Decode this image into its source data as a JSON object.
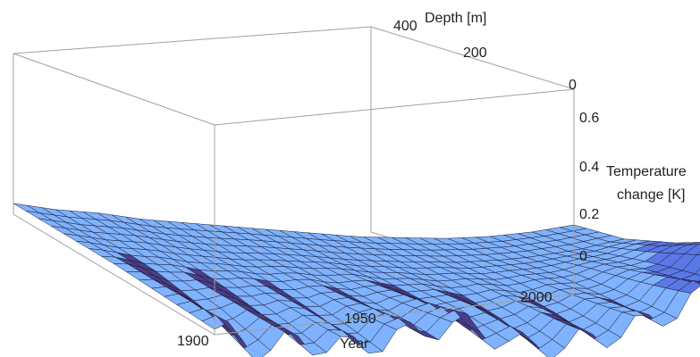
{
  "chart_data": {
    "type": "surface3d",
    "title": "",
    "axes": {
      "x": {
        "label": "Year",
        "range": [
          1880,
          2012
        ],
        "ticks": [
          1900,
          1950,
          2000
        ]
      },
      "y": {
        "label": "Depth [m]",
        "range": [
          0,
          400
        ],
        "ticks": [
          0,
          200,
          400
        ]
      },
      "z": {
        "label_lines": [
          "Temperature",
          "change [K]"
        ],
        "range": [
          -0.1,
          0.7
        ],
        "ticks": [
          0.0,
          0.2,
          0.4,
          0.6
        ]
      }
    },
    "surface": {
      "description": "Temperature change vs year and depth",
      "years": [
        1880,
        1890,
        1900,
        1910,
        1920,
        1930,
        1940,
        1950,
        1960,
        1970,
        1980,
        1990,
        2000,
        2010
      ],
      "depths": [
        0,
        100,
        200,
        300,
        400
      ],
      "values": [
        [
          0.0,
          -0.05,
          0.0,
          0.0,
          0.05,
          0.12,
          0.15,
          0.1,
          0.12,
          0.18,
          0.25,
          0.35,
          0.48,
          0.62
        ],
        [
          0.01,
          0.0,
          0.01,
          0.02,
          0.05,
          0.09,
          0.12,
          0.12,
          0.13,
          0.17,
          0.22,
          0.3,
          0.4,
          0.52
        ],
        [
          0.02,
          0.02,
          0.02,
          0.03,
          0.05,
          0.07,
          0.09,
          0.1,
          0.12,
          0.15,
          0.19,
          0.25,
          0.32,
          0.4
        ],
        [
          0.02,
          0.02,
          0.03,
          0.03,
          0.04,
          0.06,
          0.07,
          0.08,
          0.1,
          0.12,
          0.15,
          0.19,
          0.24,
          0.3
        ],
        [
          0.02,
          0.02,
          0.03,
          0.03,
          0.04,
          0.05,
          0.06,
          0.07,
          0.08,
          0.1,
          0.12,
          0.15,
          0.19,
          0.24
        ]
      ]
    },
    "colors": {
      "surface_light": "#7fb2ff",
      "surface_mid": "#5a78e6",
      "surface_dark": "#4a3e8a",
      "mesh": "#1a1a2a",
      "box": "#9a9a9a"
    },
    "grid": false,
    "box": true
  }
}
